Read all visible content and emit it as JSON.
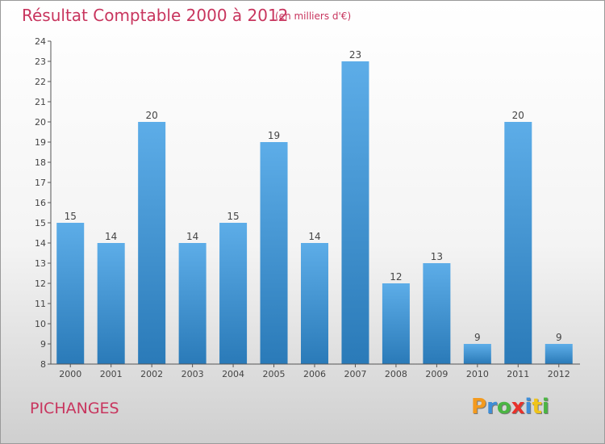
{
  "chart_data": {
    "type": "bar",
    "title": "Résultat Comptable 2000 à 2012",
    "subtitle": "(en milliers d'€)",
    "categories": [
      "2000",
      "2001",
      "2002",
      "2003",
      "2004",
      "2005",
      "2006",
      "2007",
      "2008",
      "2009",
      "2010",
      "2011",
      "2012"
    ],
    "values": [
      15,
      14,
      20,
      14,
      15,
      19,
      14,
      23,
      12,
      13,
      9,
      20,
      9
    ],
    "ylim": [
      8,
      24
    ],
    "yticks": [
      8,
      9,
      10,
      11,
      12,
      13,
      14,
      15,
      16,
      17,
      18,
      19,
      20,
      21,
      22,
      23,
      24
    ],
    "grid": false,
    "bar_color_top": "#5dade8",
    "bar_color_bottom": "#2a7ab8"
  },
  "footer": {
    "commune": "PICHANGES",
    "logo_text": "Proxiti",
    "logo_colors": [
      "#f39a1e",
      "#3f8ed8",
      "#4bb543",
      "#e8312b",
      "#3f8ed8",
      "#f0c419",
      "#4bb543"
    ]
  },
  "colors": {
    "accent": "#c8355e",
    "axis": "#555555"
  }
}
